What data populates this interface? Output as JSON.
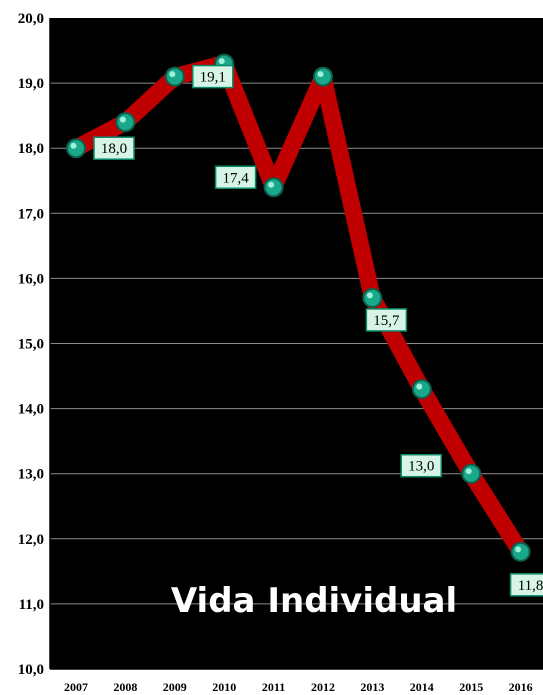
{
  "chart_data": {
    "type": "line",
    "title": "Vida Individual",
    "categories": [
      "2007",
      "2008",
      "2009",
      "2010",
      "2011",
      "2012",
      "2013",
      "2014",
      "2015",
      "2016"
    ],
    "series": [
      {
        "values": [
          18.0,
          18.4,
          19.1,
          19.3,
          17.4,
          19.1,
          15.7,
          14.3,
          13.0,
          11.8
        ]
      }
    ],
    "data_labels": [
      {
        "index": 0,
        "text": "18,0"
      },
      {
        "index": 2,
        "text": "19,1"
      },
      {
        "index": 4,
        "text": "17,4"
      },
      {
        "index": 6,
        "text": "15,7"
      },
      {
        "index": 8,
        "text": "13,0"
      },
      {
        "index": 9,
        "text": "11,8"
      }
    ],
    "y_ticks": [
      "10,0",
      "11,0",
      "12,0",
      "13,0",
      "14,0",
      "15,0",
      "16,0",
      "17,0",
      "18,0",
      "19,0",
      "20,0"
    ],
    "ylim": [
      10,
      20
    ],
    "grid": true,
    "colors": {
      "plot_background": "#000000",
      "line": "#c00000",
      "marker": "#1aa88a",
      "label_box": "#d6f5e6",
      "gridline": "#8c8c8c"
    }
  }
}
